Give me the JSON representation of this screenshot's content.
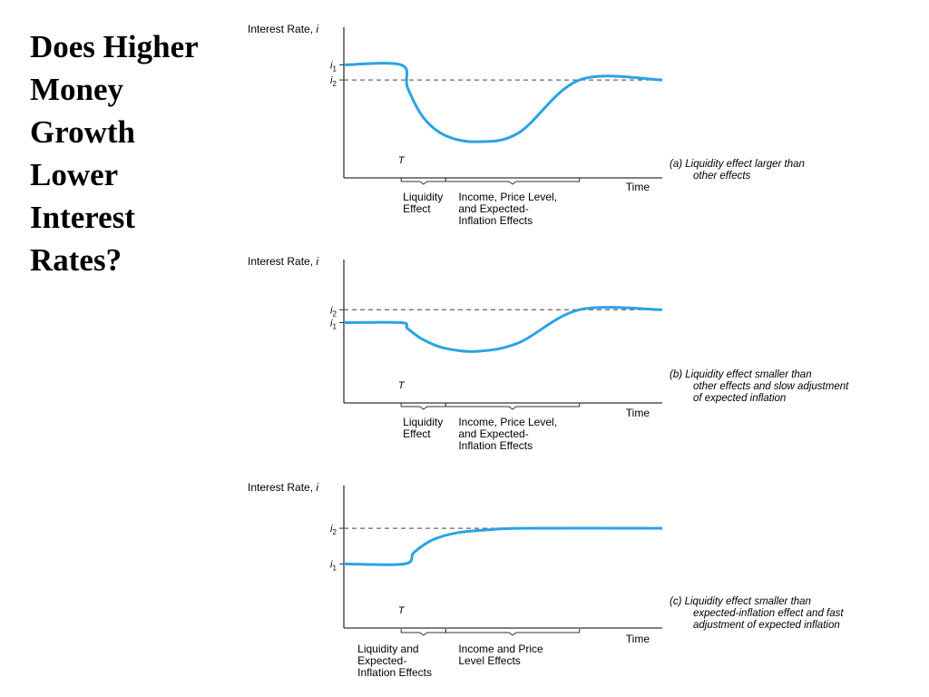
{
  "title_lines": [
    "Does Higher",
    "Money",
    "Growth",
    "Lower",
    "Interest",
    "Rates?"
  ],
  "colors": {
    "curve": "#2aa3e6",
    "axis": "#333333",
    "dashed": "#444444",
    "text": "#000000"
  },
  "chart_data": [
    {
      "type": "line",
      "panel": "a",
      "ylabel": "Interest Rate, i",
      "xlabel": "Time",
      "y_ticks": [
        {
          "symbol": "i",
          "sub": "1"
        },
        {
          "symbol": "i",
          "sub": "2"
        }
      ],
      "shock_label": "T",
      "dashed_reference": "i2",
      "levels": {
        "i1": 0.75,
        "i2": 0.65,
        "trough": 0.24
      },
      "x": [
        0,
        0.18,
        0.2,
        0.25,
        0.32,
        0.42,
        0.55,
        0.74,
        1.0
      ],
      "y": [
        0.75,
        0.75,
        0.6,
        0.4,
        0.28,
        0.24,
        0.3,
        0.65,
        0.65
      ],
      "brackets": [
        {
          "from": 0.18,
          "to": 0.32,
          "lines": [
            "Liquidity",
            "Effect"
          ]
        },
        {
          "from": 0.32,
          "to": 0.74,
          "lines": [
            "Income, Price Level,",
            "and Expected-",
            "Inflation Effects"
          ]
        }
      ],
      "caption_lines": [
        "(a) Liquidity effect larger than",
        "other effects"
      ]
    },
    {
      "type": "line",
      "panel": "b",
      "ylabel": "Interest Rate, i",
      "xlabel": "Time",
      "y_ticks": [
        {
          "symbol": "i",
          "sub": "2"
        },
        {
          "symbol": "i",
          "sub": "1"
        }
      ],
      "shock_label": "T",
      "dashed_reference": "i2",
      "levels": {
        "i1": 0.56,
        "i2": 0.65,
        "trough": 0.36
      },
      "x": [
        0,
        0.18,
        0.2,
        0.25,
        0.32,
        0.42,
        0.55,
        0.74,
        1.0
      ],
      "y": [
        0.56,
        0.56,
        0.52,
        0.44,
        0.38,
        0.36,
        0.42,
        0.65,
        0.65
      ],
      "brackets": [
        {
          "from": 0.18,
          "to": 0.32,
          "lines": [
            "Liquidity",
            "Effect"
          ]
        },
        {
          "from": 0.32,
          "to": 0.74,
          "lines": [
            "Income, Price Level,",
            "and Expected-",
            "Inflation Effects"
          ]
        }
      ],
      "caption_lines": [
        "(b) Liquidity effect smaller than",
        "other effects and slow adjustment",
        "of expected inflation"
      ]
    },
    {
      "type": "line",
      "panel": "c",
      "ylabel": "Interest Rate, i",
      "xlabel": "Time",
      "y_ticks": [
        {
          "symbol": "i",
          "sub": "2"
        },
        {
          "symbol": "i",
          "sub": "1"
        }
      ],
      "shock_label": "T",
      "dashed_reference": "i2",
      "levels": {
        "i1": 0.45,
        "i2": 0.7,
        "trough": null
      },
      "x": [
        0,
        0.19,
        0.22,
        0.28,
        0.36,
        0.46,
        0.56,
        1.0
      ],
      "y": [
        0.45,
        0.45,
        0.53,
        0.62,
        0.67,
        0.69,
        0.7,
        0.7
      ],
      "brackets": [
        {
          "from": 0.18,
          "to": 0.32,
          "lines": [
            "Liquidity and",
            "Expected-",
            "Inflation Effects"
          ]
        },
        {
          "from": 0.32,
          "to": 0.74,
          "lines": [
            "Income and Price",
            "Level Effects"
          ]
        }
      ],
      "caption_lines": [
        "(c) Liquidity effect smaller than",
        "expected-inflation effect and fast",
        "adjustment of expected inflation"
      ]
    }
  ]
}
